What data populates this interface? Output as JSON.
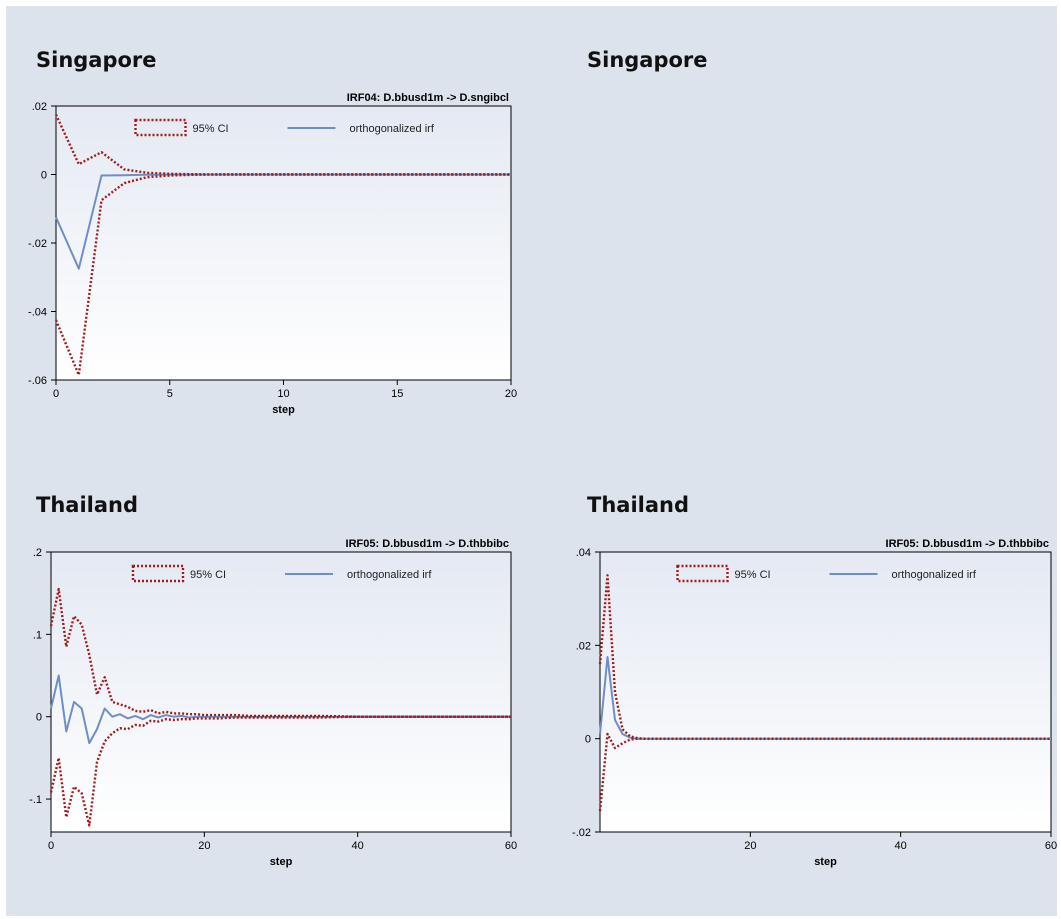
{
  "headings": {
    "top_left": "Singapore",
    "top_right": "Singapore",
    "bottom_left": "Thailand",
    "bottom_right": "Thailand"
  },
  "colors": {
    "background": "#dde3ec",
    "ci": "#a01c1c",
    "irf": "#6f8fc4",
    "plot_top": "#e4e9f3",
    "plot_bottom": "#ffffff"
  },
  "chart_data": [
    {
      "id": "irf04",
      "type": "line",
      "title": "IRF04: D.bbusd1m -> D.sngibcl",
      "xlabel": "step",
      "ylabel": "",
      "xlim": [
        0,
        20
      ],
      "ylim": [
        -0.06,
        0.02
      ],
      "xticks": [
        0,
        5,
        10,
        15,
        20
      ],
      "xtick_labels": [
        "0",
        "5",
        "10",
        "15",
        "20"
      ],
      "yticks": [
        -0.06,
        -0.04,
        -0.02,
        0,
        0.02
      ],
      "ytick_labels": [
        "-.06",
        "-.04",
        "-.02",
        "0",
        ".02"
      ],
      "legend": {
        "position": "top",
        "ci_label": "95% CI",
        "irf_label": "orthogonalized irf"
      },
      "x": [
        0,
        1,
        2,
        3,
        4,
        5,
        6,
        7,
        8,
        9,
        10,
        11,
        12,
        13,
        14,
        15,
        16,
        17,
        18,
        19,
        20
      ],
      "series": [
        {
          "name": "orthogonalized irf",
          "style": "solid",
          "values": [
            -0.0125,
            -0.0275,
            -0.0003,
            -0.0002,
            -0.0001,
            0,
            0,
            0,
            0,
            0,
            0,
            0,
            0,
            0,
            0,
            0,
            0,
            0,
            0,
            0,
            0
          ]
        },
        {
          "name": "95% CI",
          "style": "dotted",
          "band": "upper",
          "values": [
            0.0175,
            0.003,
            0.0065,
            0.0015,
            0.0005,
            0.0002,
            0.0001,
            0,
            0,
            0,
            0,
            0,
            0,
            0,
            0,
            0,
            0,
            0,
            0,
            0,
            0
          ]
        },
        {
          "name": "95% CI",
          "style": "dotted",
          "band": "lower",
          "values": [
            -0.0425,
            -0.0585,
            -0.0075,
            -0.0025,
            -0.0008,
            -0.0003,
            -0.0001,
            0,
            0,
            0,
            0,
            0,
            0,
            0,
            0,
            0,
            0,
            0,
            0,
            0,
            0
          ]
        }
      ]
    },
    {
      "id": "irf05-left",
      "type": "line",
      "title": "IRF05: D.bbusd1m -> D.thbbibc",
      "xlabel": "step",
      "ylabel": "",
      "xlim": [
        0,
        60
      ],
      "ylim": [
        -0.14,
        0.2
      ],
      "xticks": [
        0,
        20,
        40,
        60
      ],
      "xtick_labels": [
        "0",
        "20",
        "40",
        "60"
      ],
      "yticks": [
        -0.1,
        0,
        0.1,
        0.2
      ],
      "ytick_labels": [
        "-.1",
        "0",
        ".1",
        ".2"
      ],
      "legend": {
        "position": "top",
        "ci_label": "95% CI",
        "irf_label": "orthogonalized irf"
      },
      "x": [
        0,
        1,
        2,
        3,
        4,
        5,
        6,
        7,
        8,
        9,
        10,
        11,
        12,
        13,
        14,
        15,
        16,
        17,
        18,
        19,
        20,
        22,
        24,
        26,
        28,
        30,
        35,
        40,
        45,
        50,
        55,
        60
      ],
      "series": [
        {
          "name": "orthogonalized irf",
          "style": "solid",
          "values": [
            0.01,
            0.05,
            -0.018,
            0.018,
            0.01,
            -0.032,
            -0.015,
            0.01,
            0,
            0.003,
            -0.002,
            0.001,
            -0.003,
            0.002,
            -0.001,
            0.002,
            0,
            0.001,
            -0.001,
            0,
            0,
            0,
            0,
            0,
            0,
            0,
            0,
            0,
            0,
            0,
            0,
            0
          ]
        },
        {
          "name": "95% CI",
          "style": "dotted",
          "band": "upper",
          "values": [
            0.11,
            0.155,
            0.085,
            0.122,
            0.112,
            0.075,
            0.027,
            0.048,
            0.018,
            0.015,
            0.012,
            0.007,
            0.006,
            0.008,
            0.004,
            0.006,
            0.004,
            0.004,
            0.003,
            0.003,
            0.002,
            0.002,
            0.002,
            0.001,
            0.001,
            0.001,
            0.001,
            0,
            0,
            0,
            0,
            0
          ]
        },
        {
          "name": "95% CI",
          "style": "dotted",
          "band": "lower",
          "values": [
            -0.092,
            -0.05,
            -0.122,
            -0.085,
            -0.093,
            -0.132,
            -0.055,
            -0.03,
            -0.02,
            -0.014,
            -0.015,
            -0.01,
            -0.011,
            -0.005,
            -0.006,
            -0.003,
            -0.004,
            -0.003,
            -0.003,
            -0.002,
            -0.002,
            -0.002,
            -0.001,
            -0.001,
            -0.001,
            -0.001,
            -0.001,
            0,
            0,
            0,
            0,
            0
          ]
        }
      ]
    },
    {
      "id": "irf05-right",
      "type": "line",
      "title": "IRF05: D.bbusd1m -> D.thbbibc",
      "xlabel": "step",
      "ylabel": "",
      "xlim": [
        0,
        60
      ],
      "ylim": [
        -0.02,
        0.04
      ],
      "xticks": [
        20,
        40,
        60
      ],
      "xtick_labels": [
        "20",
        "40",
        "60"
      ],
      "yticks": [
        -0.02,
        0,
        0.02,
        0.04
      ],
      "ytick_labels": [
        "-.02",
        "0",
        ".02",
        ".04"
      ],
      "legend": {
        "position": "top",
        "ci_label": "95% CI",
        "irf_label": "orthogonalized irf"
      },
      "x": [
        0,
        1,
        2,
        3,
        4,
        5,
        6,
        8,
        10,
        20,
        30,
        40,
        50,
        60
      ],
      "series": [
        {
          "name": "orthogonalized irf",
          "style": "solid",
          "values": [
            0.001,
            0.0175,
            0.004,
            0.001,
            0.0002,
            0,
            0,
            0,
            0,
            0,
            0,
            0,
            0,
            0
          ]
        },
        {
          "name": "95% CI",
          "style": "dotted",
          "band": "upper",
          "values": [
            0.016,
            0.035,
            0.01,
            0.002,
            0.0005,
            0.0001,
            0,
            0,
            0,
            0,
            0,
            0,
            0,
            0
          ]
        },
        {
          "name": "95% CI",
          "style": "dotted",
          "band": "lower",
          "values": [
            -0.0155,
            0.001,
            -0.002,
            -0.001,
            -0.0002,
            0,
            0,
            0,
            0,
            0,
            0,
            0,
            0,
            0
          ]
        }
      ]
    }
  ]
}
